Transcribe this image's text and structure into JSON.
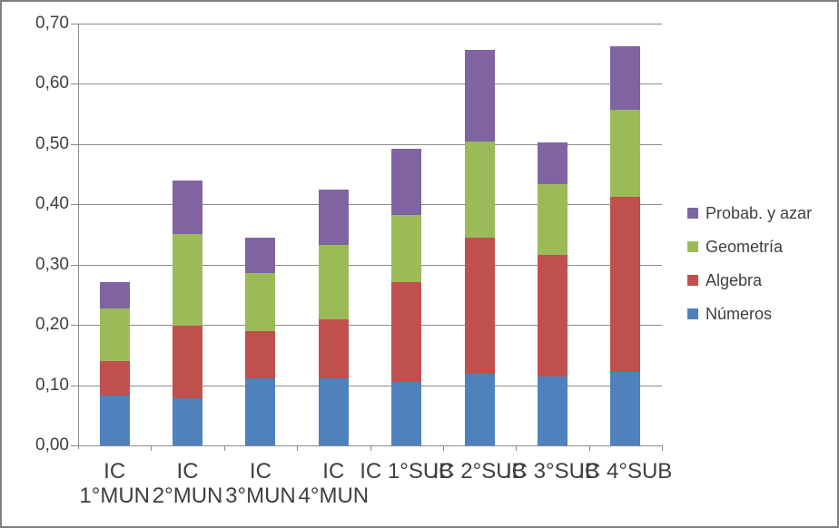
{
  "window": {
    "background_color": "#FFFFFF",
    "border_color": "#808080"
  },
  "colors": {
    "gridline": "#8C8C8C",
    "axis": "#8C8C8C",
    "text": "#3F3F3F"
  },
  "chart_data": {
    "type": "bar",
    "stacked": true,
    "title": "",
    "xlabel": "",
    "ylabel": "",
    "grid": true,
    "categories": [
      "IC 1°MUN",
      "IC 2°MUN",
      "IC 3°MUN",
      "IC 4°MUN",
      "IC 1°SUB",
      "IC 2°SUB",
      "IC 3°SUB",
      "IC 4°SUB"
    ],
    "category_label_lines": [
      [
        "IC",
        "1°MUN"
      ],
      [
        "IC",
        "2°MUN"
      ],
      [
        "IC",
        "3°MUN"
      ],
      [
        "IC",
        "4°MUN"
      ],
      [
        "IC 1°SUB"
      ],
      [
        "IC 2°SUB"
      ],
      [
        "IC 3°SUB"
      ],
      [
        "IC 4°SUB"
      ]
    ],
    "series": [
      {
        "name": "Números",
        "color": "#4F81BD",
        "values": [
          0.083,
          0.078,
          0.112,
          0.112,
          0.106,
          0.119,
          0.115,
          0.122
        ]
      },
      {
        "name": "Algebra",
        "color": "#C0504D",
        "values": [
          0.057,
          0.121,
          0.078,
          0.097,
          0.165,
          0.226,
          0.201,
          0.29
        ]
      },
      {
        "name": "Geometría",
        "color": "#9BBB59",
        "values": [
          0.088,
          0.152,
          0.096,
          0.123,
          0.112,
          0.16,
          0.117,
          0.145
        ]
      },
      {
        "name": "Probab. y azar",
        "color": "#8064A2",
        "values": [
          0.043,
          0.089,
          0.058,
          0.092,
          0.11,
          0.151,
          0.07,
          0.106
        ]
      }
    ],
    "totals": [
      0.271,
      0.44,
      0.344,
      0.424,
      0.493,
      0.656,
      0.503,
      0.663
    ],
    "y_axis": {
      "min": 0.0,
      "max": 0.7,
      "step": 0.1,
      "tick_labels": [
        "0,00",
        "0,10",
        "0,20",
        "0,30",
        "0,40",
        "0,50",
        "0,60",
        "0,70"
      ]
    },
    "legend": {
      "position": "right",
      "items_top_to_bottom": [
        "Probab. y azar",
        "Geometría",
        "Algebra",
        "Números"
      ]
    }
  }
}
